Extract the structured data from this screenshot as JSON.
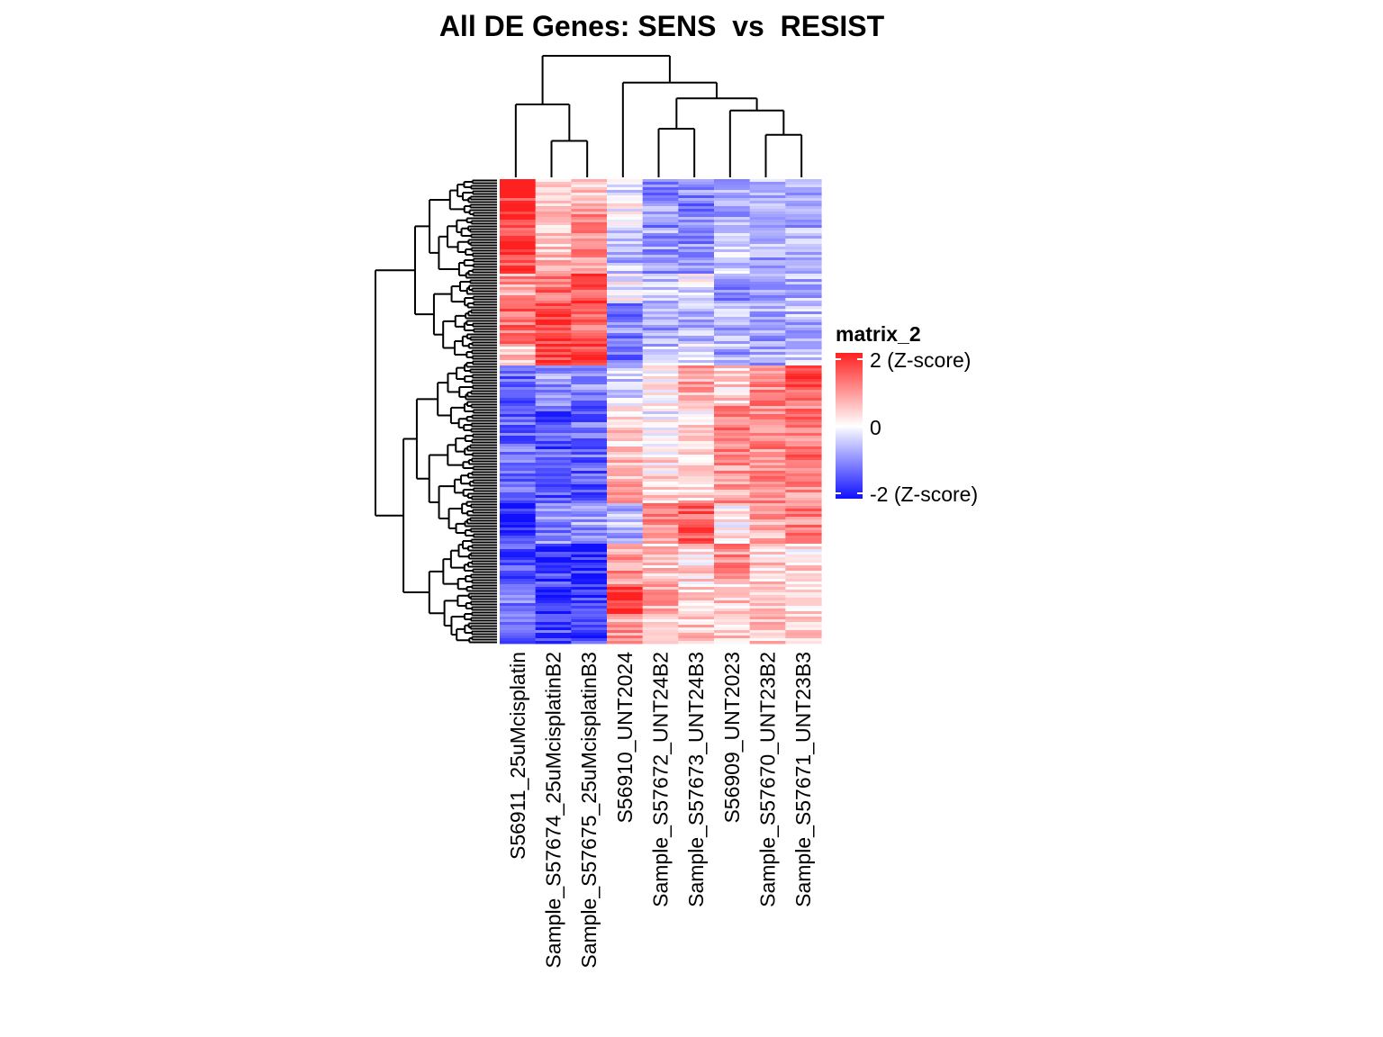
{
  "chart_data": {
    "type": "heatmap",
    "title": "All DE Genes: SENS  vs  RESIST",
    "columns": [
      "S56911_25uMcisplatin",
      "Sample_S57674_25uMcisplatinB2",
      "Sample_S57675_25uMcisplatinB3",
      "S56910_UNT2024",
      "Sample_S57672_UNT24B2",
      "Sample_S57673_UNT24B3",
      "S56909_UNT2023",
      "Sample_S57670_UNT23B2",
      "Sample_S57671_UNT23B3"
    ],
    "column_dendrogram": {
      "merges": [
        {
          "left": 1,
          "right": 2,
          "height": 0.3
        },
        {
          "left": 0,
          "right": "m0",
          "height": 0.6
        },
        {
          "left": 7,
          "right": 8,
          "height": 0.35
        },
        {
          "left": 6,
          "right": "m2",
          "height": 0.55
        },
        {
          "left": 4,
          "right": 5,
          "height": 0.4
        },
        {
          "left": "m4",
          "right": "m3",
          "height": 0.65
        },
        {
          "left": 3,
          "right": "m5",
          "height": 0.78
        },
        {
          "left": "m1",
          "right": "m6",
          "height": 1.0
        }
      ]
    },
    "row_blocks": [
      {
        "rows_fraction": 0.035,
        "values": [
          2.3,
          0.3,
          0.6,
          -0.4,
          -1.0,
          -0.9,
          -0.7,
          -0.6,
          -0.8
        ]
      },
      {
        "rows_fraction": 0.06,
        "values": [
          1.8,
          0.5,
          0.9,
          0.0,
          -0.9,
          -1.0,
          -0.6,
          -0.5,
          -0.8
        ]
      },
      {
        "rows_fraction": 0.09,
        "values": [
          1.6,
          0.6,
          1.0,
          -0.6,
          -0.8,
          -0.9,
          -0.4,
          -0.7,
          -0.7
        ]
      },
      {
        "rows_fraction": 0.06,
        "values": [
          0.9,
          1.4,
          1.5,
          -0.1,
          -0.5,
          -0.2,
          -0.9,
          -0.7,
          -0.6
        ]
      },
      {
        "rows_fraction": 0.08,
        "values": [
          1.3,
          1.7,
          1.4,
          -1.0,
          -0.7,
          -0.6,
          -0.6,
          -0.8,
          -0.6
        ]
      },
      {
        "rows_fraction": 0.045,
        "values": [
          0.4,
          1.8,
          1.6,
          -1.2,
          -0.5,
          -0.3,
          -0.7,
          -0.8,
          -0.6
        ]
      },
      {
        "rows_fraction": 0.08,
        "values": [
          -1.3,
          -0.8,
          -1.0,
          -0.4,
          0.2,
          0.8,
          0.4,
          1.1,
          1.5
        ]
      },
      {
        "rows_fraction": 0.1,
        "values": [
          -1.2,
          -1.4,
          -1.2,
          0.4,
          0.0,
          0.2,
          1.2,
          1.0,
          1.2
        ]
      },
      {
        "rows_fraction": 0.09,
        "values": [
          -1.3,
          -1.4,
          -1.3,
          0.7,
          0.3,
          0.5,
          0.9,
          1.0,
          1.0
        ]
      },
      {
        "rows_fraction": 0.08,
        "values": [
          -1.8,
          -1.0,
          -0.8,
          -0.6,
          1.0,
          1.4,
          0.2,
          0.8,
          1.1
        ]
      },
      {
        "rows_fraction": 0.08,
        "values": [
          -1.4,
          -1.6,
          -1.8,
          0.9,
          0.5,
          0.3,
          1.0,
          0.4,
          0.3
        ]
      },
      {
        "rows_fraction": 0.06,
        "values": [
          -1.0,
          -1.7,
          -1.6,
          1.8,
          0.8,
          0.5,
          0.4,
          0.3,
          0.2
        ]
      },
      {
        "rows_fraction": 0.06,
        "values": [
          -1.2,
          -1.5,
          -1.5,
          0.9,
          0.6,
          0.4,
          0.5,
          0.5,
          0.4
        ]
      }
    ],
    "color_scale": {
      "min": -2,
      "mid": 0,
      "max": 2,
      "low_color": "#1010ff",
      "mid_color": "#ffffff",
      "high_color": "#ff2020"
    },
    "legend": {
      "title": "matrix_2",
      "labels": [
        "2 (Z-score)",
        "0",
        "-2 (Z-score)"
      ],
      "values": [
        2,
        0,
        -2
      ],
      "placement": "right"
    },
    "row_dendrogram": true,
    "grid": false
  }
}
